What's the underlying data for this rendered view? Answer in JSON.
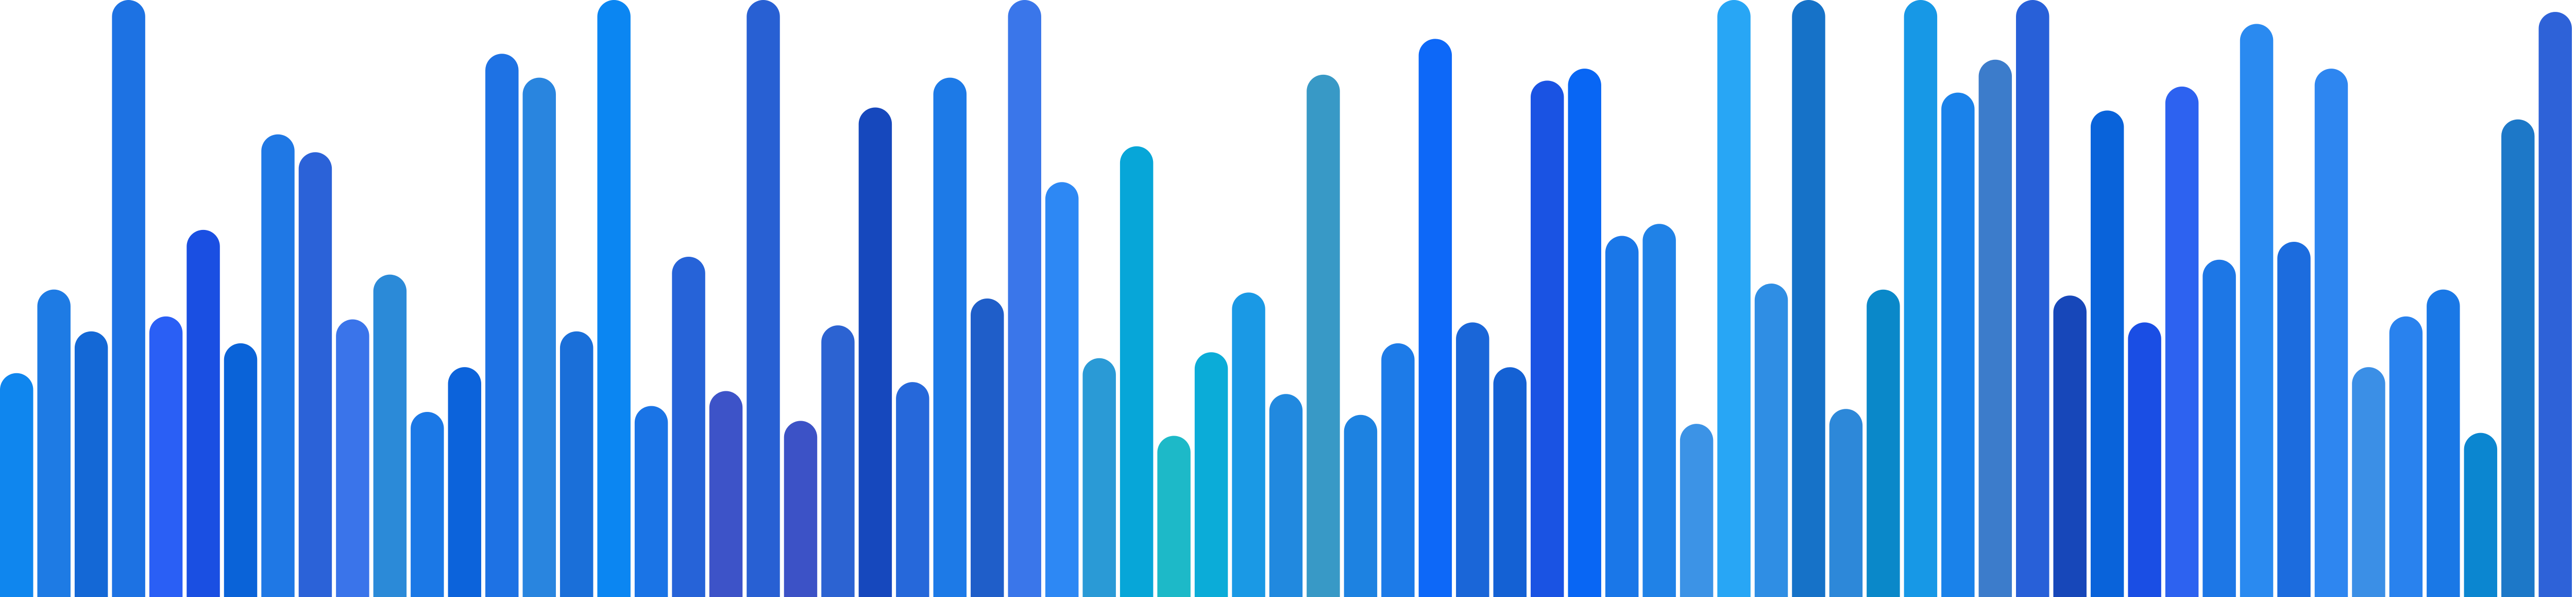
{
  "chart_data": {
    "type": "bar",
    "title": "",
    "xlabel": "",
    "ylabel": "",
    "grid": false,
    "legend": false,
    "ylim": [
      0,
      1000
    ],
    "values": [
      375,
      515,
      445,
      1000,
      470,
      615,
      425,
      775,
      745,
      465,
      540,
      310,
      385,
      910,
      870,
      445,
      1000,
      320,
      570,
      345,
      1000,
      295,
      455,
      820,
      360,
      870,
      500,
      1000,
      695,
      400,
      755,
      270,
      410,
      510,
      340,
      875,
      305,
      425,
      935,
      460,
      385,
      865,
      885,
      605,
      625,
      290,
      1000,
      525,
      1000,
      315,
      515,
      1000,
      845,
      900,
      1000,
      505,
      815,
      460,
      855,
      565,
      960,
      595,
      885,
      385,
      470,
      515,
      275,
      800,
      980
    ],
    "colors": [
      "#0f86ee",
      "#1e7be4",
      "#1468d6",
      "#1d72e3",
      "#2a5ff5",
      "#1a4fe2",
      "#0a63d8",
      "#1f78e5",
      "#2b62d8",
      "#3a74ea",
      "#2b8ad8",
      "#1b78e6",
      "#0c63db",
      "#1e72e4",
      "#2985df",
      "#1a6fd9",
      "#0b86f2",
      "#1a74e6",
      "#2663d8",
      "#3d53c8",
      "#2860d3",
      "#3c52c6",
      "#2c63d2",
      "#1648bd",
      "#2668da",
      "#1d7ae7",
      "#1f5ec9",
      "#3a76ea",
      "#2d88f4",
      "#2a9ad6",
      "#07a6d8",
      "#1db9c8",
      "#0bacd8",
      "#1a99e5",
      "#2189df",
      "#3899c6",
      "#1d82e1",
      "#1d7be8",
      "#0d68f8",
      "#1a66d8",
      "#1461d4",
      "#1a53e3",
      "#0866f4",
      "#1a77e8",
      "#2082e7",
      "#3c93e6",
      "#28a6f5",
      "#2f8ee4",
      "#1672c8",
      "#2d88d9",
      "#0a88c9",
      "#1798e6",
      "#1a82ea",
      "#3c7ccb",
      "#2860d8",
      "#1747b9",
      "#0963da",
      "#1a4ee4",
      "#2d62f0",
      "#1d77e6",
      "#2a8af0",
      "#1c6cde",
      "#2e86f0",
      "#3b8fe6",
      "#2982ee",
      "#1a78e6",
      "#0b86d0",
      "#1d78c8",
      "#2e62d8"
    ]
  }
}
